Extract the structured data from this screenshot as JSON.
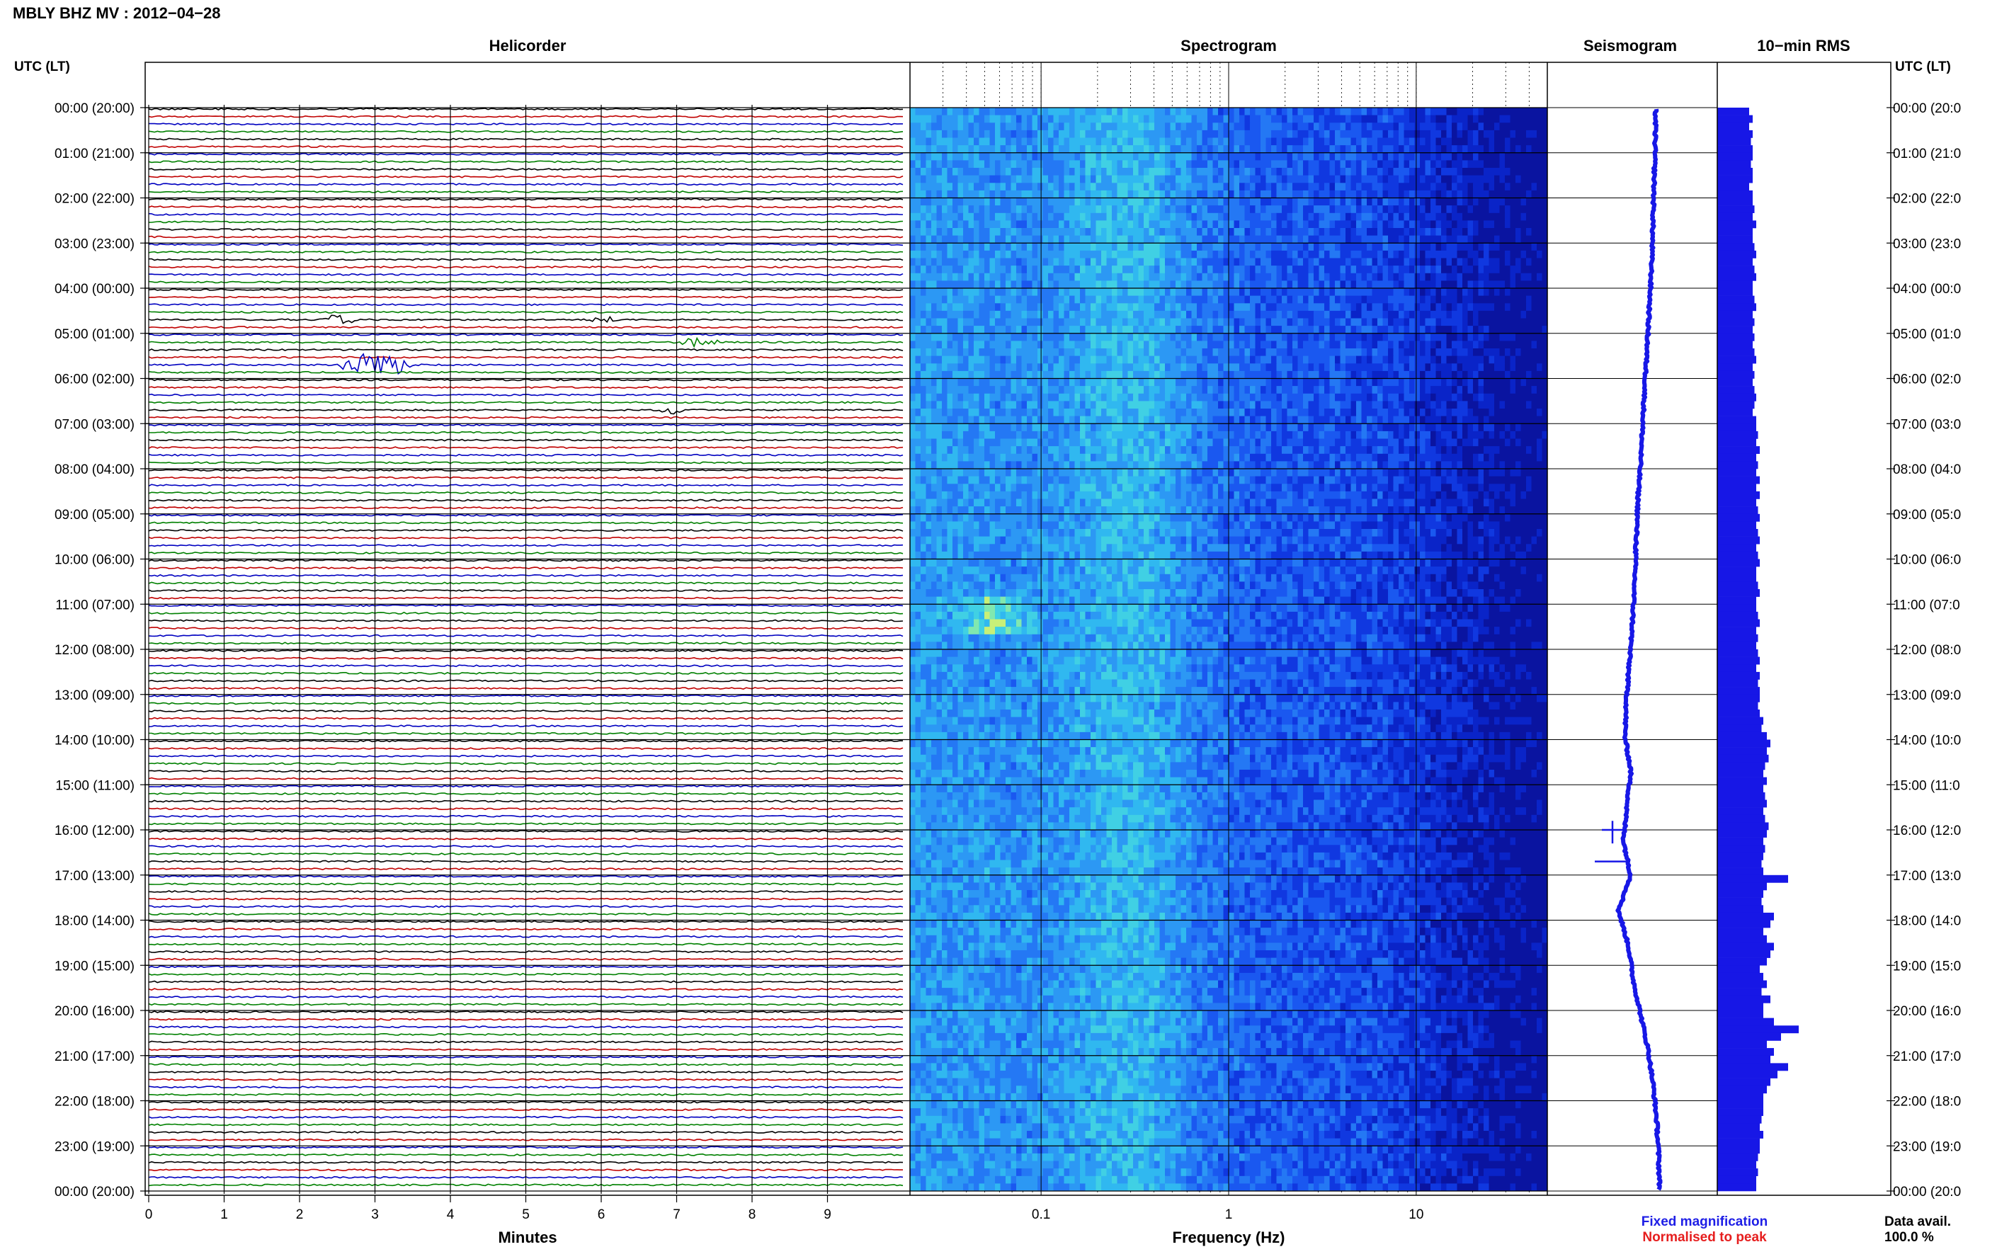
{
  "header": {
    "title": "MBLY BHZ MV : 2012−04−28"
  },
  "chart_data": {
    "type": "helicorder",
    "panels": {
      "helicorder": "Helicorder",
      "spectrogram": "Spectrogram",
      "seismogram": "Seismogram",
      "rms": "10−min RMS"
    },
    "y_axis_label": "UTC (LT)",
    "hour_labels": [
      "00:00 (20:00)",
      "01:00 (21:00)",
      "02:00 (22:00)",
      "03:00 (23:00)",
      "04:00 (00:00)",
      "05:00 (01:00)",
      "06:00 (02:00)",
      "07:00 (03:00)",
      "08:00 (04:00)",
      "09:00 (05:00)",
      "10:00 (06:00)",
      "11:00 (07:00)",
      "12:00 (08:00)",
      "13:00 (09:00)",
      "14:00 (10:00)",
      "15:00 (11:00)",
      "16:00 (12:00)",
      "17:00 (13:00)",
      "18:00 (14:00)",
      "19:00 (15:00)",
      "20:00 (16:00)",
      "21:00 (17:00)",
      "22:00 (18:00)",
      "23:00 (19:00)",
      "00:00 (20:00)"
    ],
    "right_hour_labels": [
      "00:00 (20:0",
      "01:00 (21:0",
      "02:00 (22:0",
      "03:00 (23:0",
      "04:00 (00:0",
      "05:00 (01:0",
      "06:00 (02:0",
      "07:00 (03:0",
      "08:00 (04:0",
      "09:00 (05:0",
      "10:00 (06:0",
      "11:00 (07:0",
      "12:00 (08:0",
      "13:00 (09:0",
      "14:00 (10:0",
      "15:00 (11:0",
      "16:00 (12:0",
      "17:00 (13:0",
      "18:00 (14:0",
      "19:00 (15:0",
      "20:00 (16:0",
      "21:00 (17:0",
      "22:00 (18:0",
      "23:00 (19:0",
      "00:00 (20:0"
    ],
    "helicorder_x": {
      "label": "Minutes",
      "ticks": [
        "0",
        "1",
        "2",
        "3",
        "4",
        "5",
        "6",
        "7",
        "8",
        "9"
      ],
      "range": [
        0,
        10
      ]
    },
    "spectrogram_x": {
      "label": "Frequency (Hz)",
      "scale": "log",
      "ticks": [
        "0.1",
        "1",
        "10"
      ],
      "range": [
        0.02,
        50
      ]
    },
    "trace_colors": [
      "#000000",
      "#c00000",
      "#0000c0",
      "#008000"
    ],
    "lines_per_hour": 6,
    "events": [
      {
        "row": 28,
        "start_min": 2.2,
        "end_min": 2.8,
        "amp": 0.35,
        "color": "#008000"
      },
      {
        "row": 28,
        "start_min": 5.8,
        "end_min": 6.3,
        "amp": 0.18,
        "color": "#0000c0"
      },
      {
        "row": 31,
        "start_min": 7.0,
        "end_min": 7.6,
        "amp": 0.3,
        "color": "#008000"
      },
      {
        "row": 34,
        "start_min": 2.5,
        "end_min": 3.5,
        "amp": 0.9,
        "color": "#000000"
      },
      {
        "row": 40,
        "start_min": 6.7,
        "end_min": 7.2,
        "amp": 0.3,
        "color": "#000000"
      }
    ],
    "rms_by_hour": [
      [
        0.9,
        1.0,
        0.9,
        1.0,
        0.95,
        1.0
      ],
      [
        1.0,
        0.95,
        1.0,
        1.0,
        0.9,
        1.0
      ],
      [
        1.0,
        1.05,
        1.0,
        1.1,
        1.0,
        1.0
      ],
      [
        1.05,
        1.1,
        1.0,
        1.05,
        1.1,
        1.0
      ],
      [
        1.0,
        1.05,
        1.1,
        1.0,
        1.05,
        1.0
      ],
      [
        1.05,
        1.0,
        1.05,
        1.1,
        1.0,
        1.05
      ],
      [
        1.0,
        1.05,
        1.1,
        1.05,
        1.0,
        1.1
      ],
      [
        1.1,
        1.15,
        1.1,
        1.2,
        1.1,
        1.15
      ],
      [
        1.1,
        1.2,
        1.1,
        1.2,
        1.1,
        1.15
      ],
      [
        1.2,
        1.1,
        1.15,
        1.2,
        1.1,
        1.15
      ],
      [
        1.2,
        1.1,
        1.1,
        1.15,
        1.2,
        1.1
      ],
      [
        1.1,
        1.15,
        1.2,
        1.1,
        1.15,
        1.1
      ],
      [
        1.15,
        1.2,
        1.1,
        1.2,
        1.15,
        1.2
      ],
      [
        1.2,
        1.15,
        1.2,
        1.3,
        1.25,
        1.4
      ],
      [
        1.5,
        1.4,
        1.45,
        1.35,
        1.3,
        1.4
      ],
      [
        1.3,
        1.35,
        1.4,
        1.3,
        1.35,
        1.45
      ],
      [
        1.4,
        1.3,
        1.35,
        1.3,
        1.25,
        1.3
      ],
      [
        2.0,
        1.4,
        1.3,
        1.25,
        1.3,
        1.6
      ],
      [
        1.5,
        1.3,
        1.4,
        1.6,
        1.5,
        1.4
      ],
      [
        1.2,
        1.3,
        1.4,
        1.25,
        1.5,
        1.3
      ],
      [
        1.3,
        1.6,
        2.3,
        1.8,
        1.4,
        1.6
      ],
      [
        1.5,
        2.0,
        1.7,
        1.5,
        1.4,
        1.3
      ],
      [
        1.3,
        1.3,
        1.25,
        1.2,
        1.3,
        1.2
      ],
      [
        1.2,
        1.15,
        1.1,
        1.15,
        1.1,
        1.1
      ]
    ],
    "rms_axis_max": 4.5,
    "seismogram_offsets": [
      0.4,
      0.39,
      0.37,
      0.35,
      0.33,
      0.3,
      0.26,
      0.22,
      0.18,
      0.14,
      0.1,
      0.05,
      0.02,
      -0.01,
      -0.04,
      -0.08,
      -0.14,
      -0.19,
      -0.22,
      -0.1,
      -0.18,
      -0.25,
      -0.1,
      -0.35,
      -0.15,
      -0.05,
      0.1,
      0.25,
      0.35,
      0.42,
      0.46,
      0.48
    ],
    "spectrogram_peak_freq_hz": 0.3
  },
  "legend": {
    "fixed": "Fixed magnification",
    "normalised": "Normalised to peak"
  },
  "availability": {
    "label": "Data avail.",
    "value": "100.0 %"
  },
  "colors": {
    "fixed": "#1e1ee6",
    "normalised": "#e61e1e",
    "seismogram": "#1717e6",
    "rms": "#1717e6"
  }
}
